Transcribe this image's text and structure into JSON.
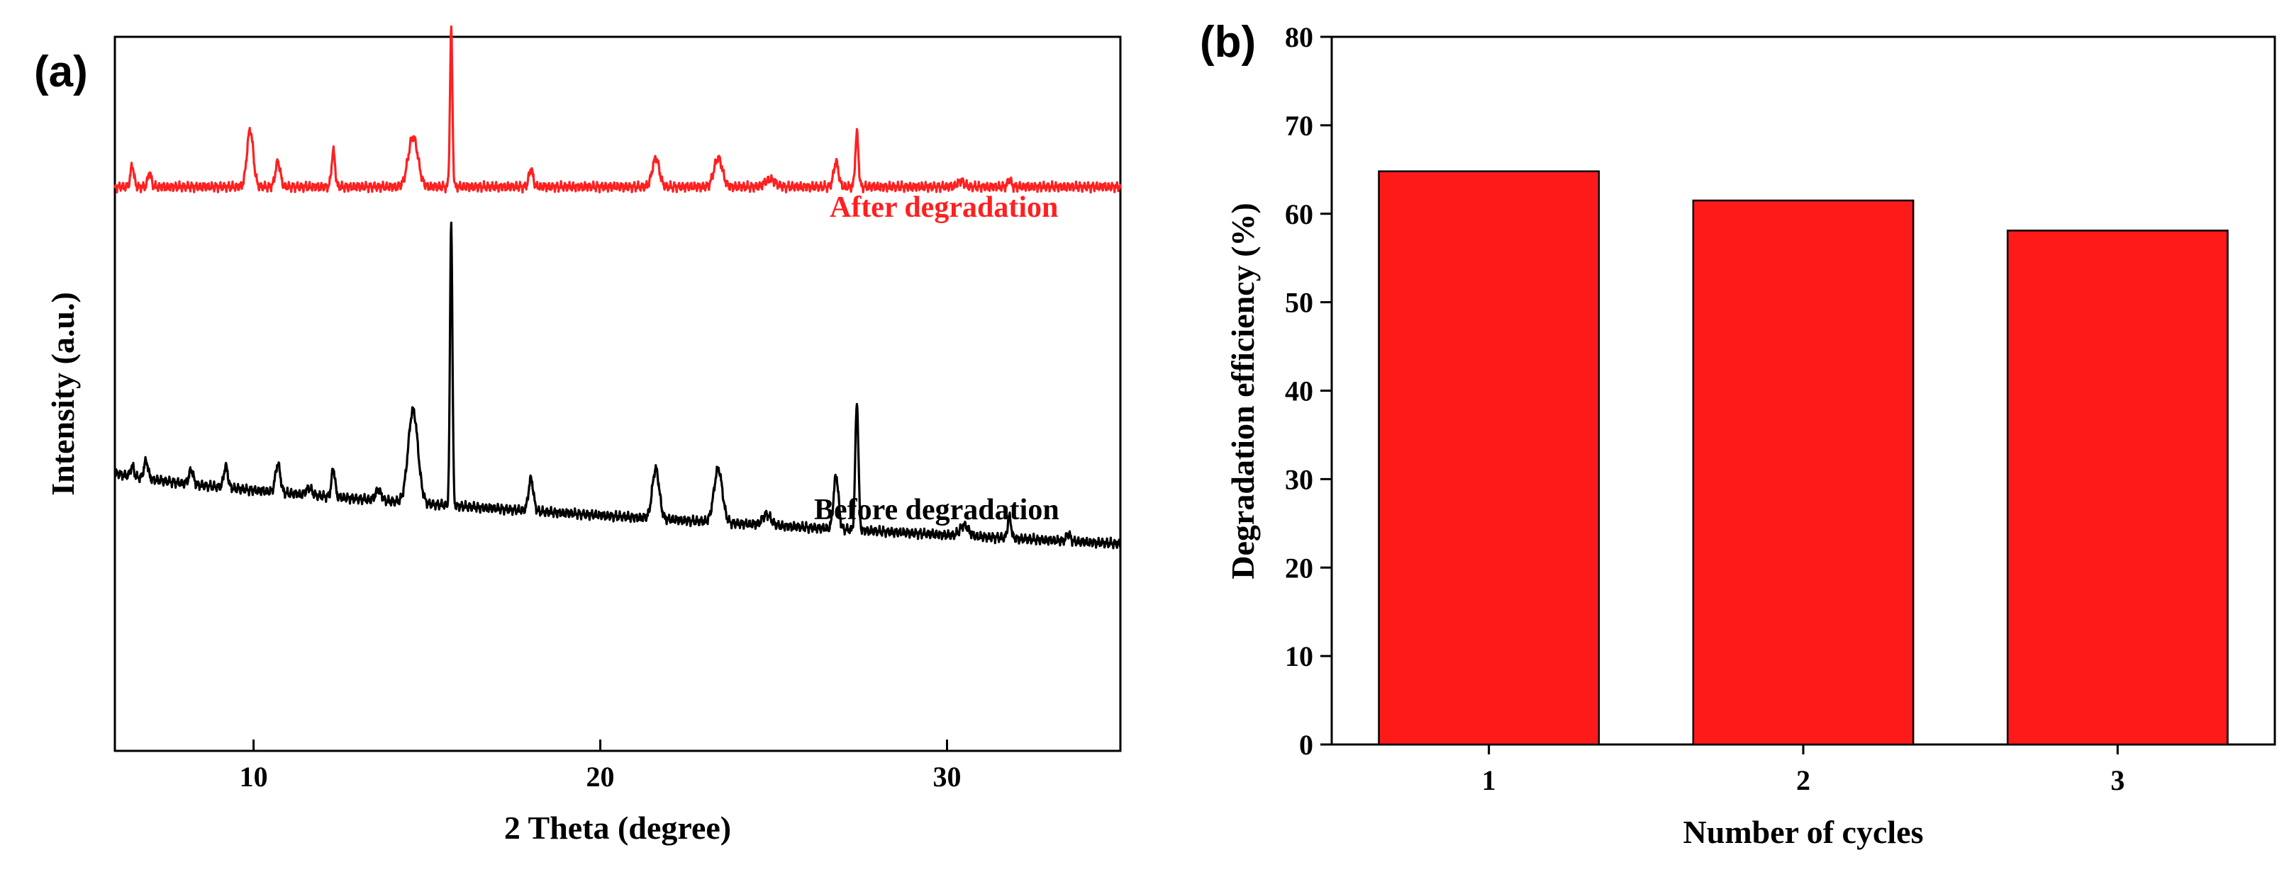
{
  "chart_data": [
    {
      "panel": "(a)",
      "type": "line",
      "title": "",
      "xlabel": "2 Theta (degree)",
      "ylabel": "Intensity (a.u.)",
      "xlim": [
        6,
        35
      ],
      "xticks": [
        10,
        20,
        30
      ],
      "ylim": [
        0,
        100
      ],
      "yticks_shown": false,
      "series": [
        {
          "name": "After degradation",
          "color": "#ff2020",
          "baseline": 79,
          "baseline_end": 79,
          "peaks": [
            {
              "x": 6.5,
              "h": 3,
              "w": 0.05
            },
            {
              "x": 7.0,
              "h": 2,
              "w": 0.05
            },
            {
              "x": 9.9,
              "h": 8,
              "w": 0.09
            },
            {
              "x": 10.7,
              "h": 3.5,
              "w": 0.07
            },
            {
              "x": 12.3,
              "h": 5,
              "w": 0.05
            },
            {
              "x": 14.6,
              "h": 7,
              "w": 0.14
            },
            {
              "x": 15.7,
              "h": 22,
              "w": 0.035
            },
            {
              "x": 18.0,
              "h": 2.5,
              "w": 0.06
            },
            {
              "x": 21.6,
              "h": 4,
              "w": 0.1
            },
            {
              "x": 23.4,
              "h": 4,
              "w": 0.12
            },
            {
              "x": 24.9,
              "h": 1,
              "w": 0.15
            },
            {
              "x": 26.8,
              "h": 3.5,
              "w": 0.07
            },
            {
              "x": 27.4,
              "h": 7.5,
              "w": 0.045
            },
            {
              "x": 30.4,
              "h": 0.8,
              "w": 0.1
            },
            {
              "x": 31.8,
              "h": 1,
              "w": 0.05
            }
          ]
        },
        {
          "name": "Before degradation",
          "color": "#000000",
          "baseline": 39,
          "baseline_end": 29,
          "peaks": [
            {
              "x": 6.5,
              "h": 1.5,
              "w": 0.05
            },
            {
              "x": 6.9,
              "h": 2.5,
              "w": 0.06
            },
            {
              "x": 8.2,
              "h": 2,
              "w": 0.06
            },
            {
              "x": 9.2,
              "h": 3,
              "w": 0.06
            },
            {
              "x": 10.7,
              "h": 4,
              "w": 0.07
            },
            {
              "x": 11.6,
              "h": 1,
              "w": 0.08
            },
            {
              "x": 12.3,
              "h": 4,
              "w": 0.05
            },
            {
              "x": 13.6,
              "h": 1.5,
              "w": 0.08
            },
            {
              "x": 14.6,
              "h": 13,
              "w": 0.14
            },
            {
              "x": 15.7,
              "h": 40,
              "w": 0.035
            },
            {
              "x": 18.0,
              "h": 4.5,
              "w": 0.07
            },
            {
              "x": 21.6,
              "h": 7,
              "w": 0.1
            },
            {
              "x": 23.4,
              "h": 7.5,
              "w": 0.12
            },
            {
              "x": 24.8,
              "h": 1.5,
              "w": 0.12
            },
            {
              "x": 26.8,
              "h": 7.5,
              "w": 0.07
            },
            {
              "x": 27.4,
              "h": 18,
              "w": 0.045
            },
            {
              "x": 30.5,
              "h": 1.5,
              "w": 0.12
            },
            {
              "x": 31.8,
              "h": 3,
              "w": 0.05
            },
            {
              "x": 33.5,
              "h": 1,
              "w": 0.06
            }
          ]
        }
      ],
      "annotations": [
        {
          "text": "After degradation",
          "color": "#ff2020"
        },
        {
          "text": "Before degradation",
          "color": "#000000"
        }
      ]
    },
    {
      "panel": "(b)",
      "type": "bar",
      "title": "",
      "xlabel": "Number of cycles",
      "ylabel": "Degradation efficiency (%)",
      "categories": [
        "1",
        "2",
        "3"
      ],
      "values": [
        64.8,
        61.5,
        58.1
      ],
      "ylim": [
        0,
        80
      ],
      "yticks": [
        0,
        10,
        20,
        30,
        40,
        50,
        60,
        70,
        80
      ],
      "bar_color": "#ff1a1a"
    }
  ]
}
